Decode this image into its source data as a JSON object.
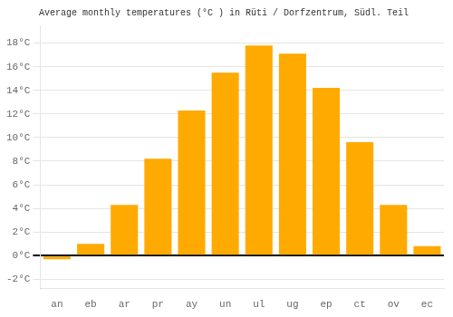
{
  "chart_data": {
    "type": "bar",
    "title": "Average monthly temperatures (°C ) in Rüti / Dorfzentrum, Südl. Teil",
    "categories": [
      "an",
      "eb",
      "ar",
      "pr",
      "ay",
      "un",
      "ul",
      "ug",
      "ep",
      "ct",
      "ov",
      "ec"
    ],
    "values": [
      -0.3,
      1.0,
      4.3,
      8.2,
      12.3,
      15.5,
      17.8,
      17.1,
      14.2,
      9.6,
      4.3,
      0.8
    ],
    "color": "#FFAA00",
    "ylim": [
      -2.8,
      19.5
    ],
    "yticks": [
      {
        "value": -2,
        "label": "-2°C"
      },
      {
        "value": 0,
        "label": "0°C"
      },
      {
        "value": 2,
        "label": "2°C"
      },
      {
        "value": 4,
        "label": "4°C"
      },
      {
        "value": 6,
        "label": "6°C"
      },
      {
        "value": 8,
        "label": "8°C"
      },
      {
        "value": 10,
        "label": "10°C"
      },
      {
        "value": 12,
        "label": "12°C"
      },
      {
        "value": 14,
        "label": "14°C"
      },
      {
        "value": 16,
        "label": "16°C"
      },
      {
        "value": 18,
        "label": "18°C"
      }
    ],
    "grid": true
  }
}
